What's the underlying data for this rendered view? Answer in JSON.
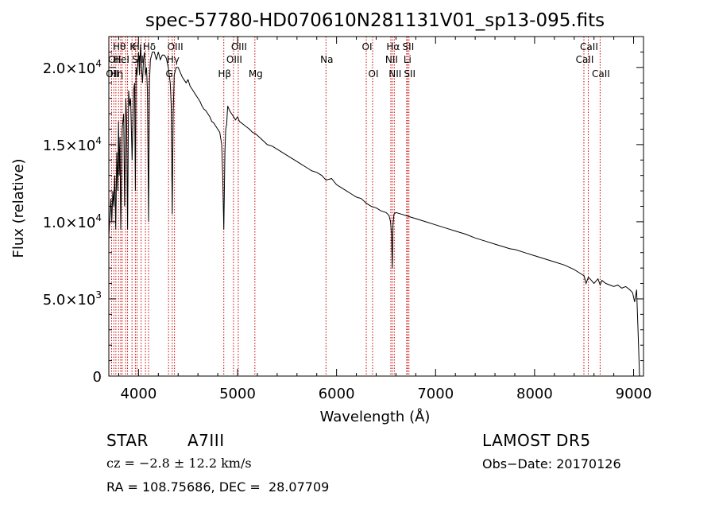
{
  "chart_data": {
    "type": "line",
    "title": "spec-57780-HD070610N281131V01_sp13-095.fits",
    "xlabel": "Wavelength (Å)",
    "ylabel": "Flux (relative)",
    "xlim": [
      3700,
      9100
    ],
    "ylim": [
      0,
      22000
    ],
    "x_ticks": [
      4000,
      5000,
      6000,
      7000,
      8000,
      9000
    ],
    "x_tick_labels": [
      "4000",
      "5000",
      "6000",
      "7000",
      "8000",
      "9000"
    ],
    "y_ticks": [
      0,
      5000,
      10000,
      15000,
      20000
    ],
    "y_tick_labels": [
      {
        "mantissa": "0",
        "exp": ""
      },
      {
        "mantissa": "5.0×10",
        "exp": "3"
      },
      {
        "mantissa": "1.0×10",
        "exp": "4"
      },
      {
        "mantissa": "1.5×10",
        "exp": "4"
      },
      {
        "mantissa": "2.0×10",
        "exp": "4"
      }
    ],
    "grid": false,
    "line_color": "#000000",
    "marker_color": "#cc0000",
    "series": [
      {
        "x": [
          3700,
          3720,
          3730,
          3740,
          3750,
          3760,
          3770,
          3780,
          3790,
          3798,
          3805,
          3812,
          3820,
          3835,
          3850,
          3860,
          3872,
          3880,
          3889,
          3900,
          3910,
          3920,
          3935,
          3950,
          3960,
          3968,
          3975,
          3985,
          4000,
          4010,
          4020,
          4030,
          4040,
          4050,
          4060,
          4070,
          4080,
          4090,
          4101,
          4110,
          4120,
          4140,
          4160,
          4180,
          4200,
          4220,
          4240,
          4260,
          4280,
          4300,
          4310,
          4320,
          4330,
          4340,
          4350,
          4360,
          4380,
          4400,
          4420,
          4440,
          4460,
          4480,
          4500,
          4520,
          4540,
          4560,
          4580,
          4600,
          4620,
          4640,
          4660,
          4680,
          4700,
          4720,
          4740,
          4760,
          4780,
          4800,
          4820,
          4840,
          4850,
          4855,
          4861,
          4866,
          4872,
          4880,
          4890,
          4900,
          4920,
          4940,
          4960,
          4980,
          5000,
          5020,
          5040,
          5060,
          5080,
          5100,
          5120,
          5150,
          5180,
          5200,
          5250,
          5300,
          5350,
          5400,
          5450,
          5500,
          5550,
          5600,
          5650,
          5700,
          5750,
          5800,
          5850,
          5893,
          5950,
          6000,
          6050,
          6100,
          6150,
          6200,
          6250,
          6300,
          6350,
          6400,
          6450,
          6500,
          6530,
          6545,
          6555,
          6563,
          6570,
          6580,
          6600,
          6650,
          6700,
          6750,
          6800,
          6900,
          7000,
          7100,
          7200,
          7300,
          7400,
          7500,
          7600,
          7700,
          7750,
          7800,
          7900,
          8000,
          8100,
          8200,
          8300,
          8400,
          8450,
          8500,
          8520,
          8542,
          8560,
          8600,
          8640,
          8662,
          8680,
          8720,
          8760,
          8800,
          8840,
          8880,
          8920,
          8960,
          8990,
          9010,
          9030,
          9045,
          9060
        ],
        "y": [
          9000,
          11500,
          10000,
          12000,
          11000,
          13000,
          9500,
          14500,
          12000,
          16500,
          13000,
          15500,
          9500,
          16000,
          17000,
          11000,
          18000,
          16500,
          9500,
          18500,
          17500,
          18000,
          14000,
          18500,
          19000,
          12000,
          20000,
          19500,
          21000,
          19500,
          21500,
          20000,
          19000,
          20500,
          21000,
          19500,
          20000,
          18500,
          10000,
          19000,
          20500,
          21000,
          21000,
          20500,
          21000,
          20500,
          20800,
          20800,
          20600,
          20000,
          19500,
          19000,
          17500,
          10500,
          17000,
          19500,
          20000,
          20000,
          19700,
          19400,
          19200,
          19000,
          19200,
          18800,
          18600,
          18400,
          18200,
          18000,
          17800,
          17500,
          17300,
          17200,
          17000,
          16800,
          16500,
          16400,
          16200,
          16000,
          15800,
          15000,
          13000,
          11500,
          9500,
          11500,
          14500,
          16000,
          16300,
          17500,
          17200,
          17000,
          16800,
          16600,
          16800,
          16500,
          16400,
          16300,
          16200,
          16100,
          16000,
          15800,
          15700,
          15600,
          15300,
          15000,
          14900,
          14700,
          14500,
          14300,
          14100,
          13900,
          13700,
          13500,
          13300,
          13200,
          13000,
          12700,
          12800,
          12400,
          12200,
          12000,
          11800,
          11600,
          11500,
          11200,
          11000,
          10900,
          10700,
          10600,
          10400,
          10000,
          9200,
          7000,
          9800,
          10500,
          10600,
          10500,
          10400,
          10300,
          10200,
          10000,
          9800,
          9600,
          9400,
          9200,
          8950,
          8750,
          8550,
          8350,
          8250,
          8200,
          8000,
          7800,
          7600,
          7400,
          7200,
          6900,
          6700,
          6500,
          6000,
          6400,
          6300,
          6000,
          6300,
          5900,
          6200,
          6000,
          5900,
          5800,
          5900,
          5700,
          5800,
          5600,
          5400,
          4800,
          5600,
          3000,
          0
        ]
      }
    ],
    "line_markers": [
      {
        "wavelength": 3728,
        "label": "OII",
        "row": 3
      },
      {
        "wavelength": 3750,
        "label": "OII",
        "row": 2
      },
      {
        "wavelength": 3771,
        "label": "Hη",
        "row": 3
      },
      {
        "wavelength": 3798,
        "label": "Hθ",
        "row": 1
      },
      {
        "wavelength": 3820,
        "label": "HeI",
        "row": 2
      },
      {
        "wavelength": 3835,
        "label": "",
        "row": 0
      },
      {
        "wavelength": 3869,
        "label": "",
        "row": 0
      },
      {
        "wavelength": 3889,
        "label": "",
        "row": 0
      },
      {
        "wavelength": 3934,
        "label": "K",
        "row": 1
      },
      {
        "wavelength": 3968,
        "label": "H",
        "row": 1
      },
      {
        "wavelength": 3985,
        "label": "SII",
        "row": 2
      },
      {
        "wavelength": 4026,
        "label": "",
        "row": 0
      },
      {
        "wavelength": 4070,
        "label": "",
        "row": 0
      },
      {
        "wavelength": 4101,
        "label": "Hδ",
        "row": 1
      },
      {
        "wavelength": 4303,
        "label": "G",
        "row": 3
      },
      {
        "wavelength": 4340,
        "label": "Hγ",
        "row": 2
      },
      {
        "wavelength": 4363,
        "label": "OIII",
        "row": 1
      },
      {
        "wavelength": 4861,
        "label": "Hβ",
        "row": 3
      },
      {
        "wavelength": 4959,
        "label": "OIII",
        "row": 2
      },
      {
        "wavelength": 5007,
        "label": "OIII",
        "row": 1
      },
      {
        "wavelength": 5175,
        "label": "Mg",
        "row": 3
      },
      {
        "wavelength": 5893,
        "label": "Na",
        "row": 2
      },
      {
        "wavelength": 6300,
        "label": "OI",
        "row": 1
      },
      {
        "wavelength": 6364,
        "label": "OI",
        "row": 3
      },
      {
        "wavelength": 6548,
        "label": "NII",
        "row": 2
      },
      {
        "wavelength": 6563,
        "label": "Hα",
        "row": 1
      },
      {
        "wavelength": 6583,
        "label": "NII",
        "row": 3
      },
      {
        "wavelength": 6708,
        "label": "Li",
        "row": 2
      },
      {
        "wavelength": 6716,
        "label": "SII",
        "row": 1
      },
      {
        "wavelength": 6731,
        "label": "SII",
        "row": 3
      },
      {
        "wavelength": 8498,
        "label": "CaII",
        "row": 2
      },
      {
        "wavelength": 8542,
        "label": "CaII",
        "row": 1
      },
      {
        "wavelength": 8662,
        "label": "CaII",
        "row": 3
      }
    ]
  },
  "info": {
    "class_label": "STAR",
    "subclass": "A7III",
    "survey": "LAMOST DR5",
    "cz": "cz = −2.8 ± 12.2 km/s",
    "obs_date": "Obs−Date: 20170126",
    "coords": "RA = 108.75686, DEC =  28.07709"
  }
}
